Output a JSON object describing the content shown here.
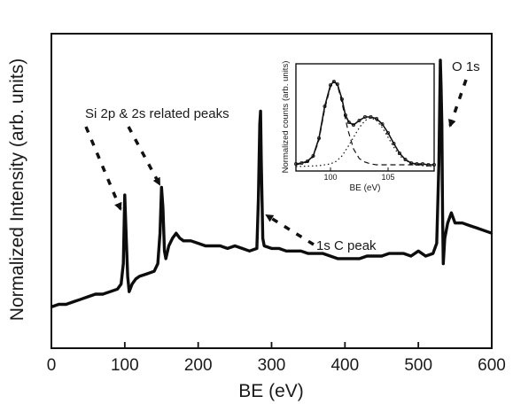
{
  "chart_data": [
    {
      "type": "line",
      "xlabel": "BE (eV)",
      "ylabel": "Normalized Intensity (arb. units)",
      "xlim": [
        0,
        600
      ],
      "xticks": [
        0,
        100,
        200,
        300,
        400,
        500,
        600
      ],
      "ylim": [
        0,
        1
      ],
      "yticks_shown": false,
      "grid": false,
      "series": [
        {
          "x": [
            0,
            10,
            20,
            30,
            40,
            50,
            60,
            70,
            80,
            90,
            95,
            98,
            100,
            102,
            104,
            106,
            110,
            115,
            120,
            130,
            140,
            145,
            148,
            150,
            152,
            154,
            156,
            160,
            165,
            170,
            175,
            180,
            190,
            200,
            210,
            220,
            230,
            240,
            250,
            260,
            270,
            280,
            282,
            284,
            285,
            286,
            288,
            290,
            300,
            310,
            320,
            330,
            340,
            350,
            360,
            370,
            380,
            390,
            400,
            410,
            420,
            430,
            440,
            450,
            460,
            470,
            480,
            490,
            500,
            510,
            520,
            525,
            528,
            530,
            531,
            532,
            533,
            534,
            536,
            540,
            545,
            550,
            560,
            570,
            580,
            590,
            600
          ],
          "y": [
            0.03,
            0.04,
            0.04,
            0.05,
            0.06,
            0.07,
            0.08,
            0.08,
            0.09,
            0.1,
            0.12,
            0.2,
            0.47,
            0.3,
            0.15,
            0.09,
            0.12,
            0.14,
            0.15,
            0.16,
            0.17,
            0.2,
            0.32,
            0.5,
            0.42,
            0.25,
            0.22,
            0.27,
            0.3,
            0.32,
            0.3,
            0.29,
            0.29,
            0.28,
            0.27,
            0.27,
            0.27,
            0.26,
            0.27,
            0.26,
            0.25,
            0.26,
            0.45,
            0.75,
            0.8,
            0.6,
            0.3,
            0.27,
            0.26,
            0.26,
            0.25,
            0.25,
            0.25,
            0.24,
            0.24,
            0.24,
            0.23,
            0.22,
            0.22,
            0.22,
            0.22,
            0.23,
            0.23,
            0.23,
            0.24,
            0.24,
            0.24,
            0.23,
            0.25,
            0.23,
            0.24,
            0.28,
            0.6,
            1.0,
            0.9,
            0.75,
            0.4,
            0.2,
            0.3,
            0.36,
            0.4,
            0.36,
            0.36,
            0.35,
            0.34,
            0.33,
            0.32
          ]
        }
      ],
      "annotations": [
        {
          "text": "Si 2p & 2s related peaks",
          "points_to_x": [
            100,
            150
          ]
        },
        {
          "text": "1s C peak",
          "points_to_x": 285
        },
        {
          "text": "O 1s",
          "points_to_x": 533
        }
      ]
    },
    {
      "type": "line",
      "inset": true,
      "xlabel": "BE (eV)",
      "ylabel": "Normalized counts (arb. units)",
      "xlim": [
        97,
        109
      ],
      "xticks": [
        100,
        105
      ],
      "ylim": [
        0,
        1.1
      ],
      "series": [
        {
          "style": "measured",
          "x": [
            97,
            97.5,
            98,
            98.5,
            99,
            99.5,
            100,
            100.3,
            100.6,
            101,
            101.3,
            101.6,
            102,
            102.5,
            103,
            103.5,
            104,
            104.5,
            105,
            105.5,
            106,
            106.5,
            107,
            107.5,
            108,
            108.5,
            109
          ],
          "y": [
            0.03,
            0.04,
            0.06,
            0.12,
            0.32,
            0.68,
            0.92,
            0.96,
            0.93,
            0.76,
            0.58,
            0.5,
            0.47,
            0.52,
            0.56,
            0.56,
            0.54,
            0.48,
            0.38,
            0.26,
            0.15,
            0.08,
            0.04,
            0.03,
            0.03,
            0.02,
            0.02
          ]
        },
        {
          "style": "dashed",
          "x": [
            97,
            98,
            98.5,
            99,
            99.5,
            100,
            100.3,
            100.6,
            101,
            101.5,
            102,
            102.5,
            103,
            103.5,
            104,
            105,
            106,
            107,
            108,
            109
          ],
          "y": [
            0.02,
            0.05,
            0.11,
            0.3,
            0.65,
            0.9,
            0.96,
            0.92,
            0.72,
            0.42,
            0.2,
            0.09,
            0.05,
            0.03,
            0.02,
            0.02,
            0.02,
            0.02,
            0.02,
            0.02
          ]
        },
        {
          "style": "dotted",
          "x": [
            97,
            99,
            100,
            100.5,
            101,
            101.5,
            102,
            102.5,
            103,
            103.5,
            104,
            104.5,
            105,
            105.5,
            106,
            107,
            108,
            109
          ],
          "y": [
            0.0,
            0.01,
            0.03,
            0.06,
            0.12,
            0.22,
            0.33,
            0.44,
            0.52,
            0.55,
            0.52,
            0.44,
            0.33,
            0.22,
            0.12,
            0.03,
            0.01,
            0.0
          ]
        }
      ]
    }
  ]
}
